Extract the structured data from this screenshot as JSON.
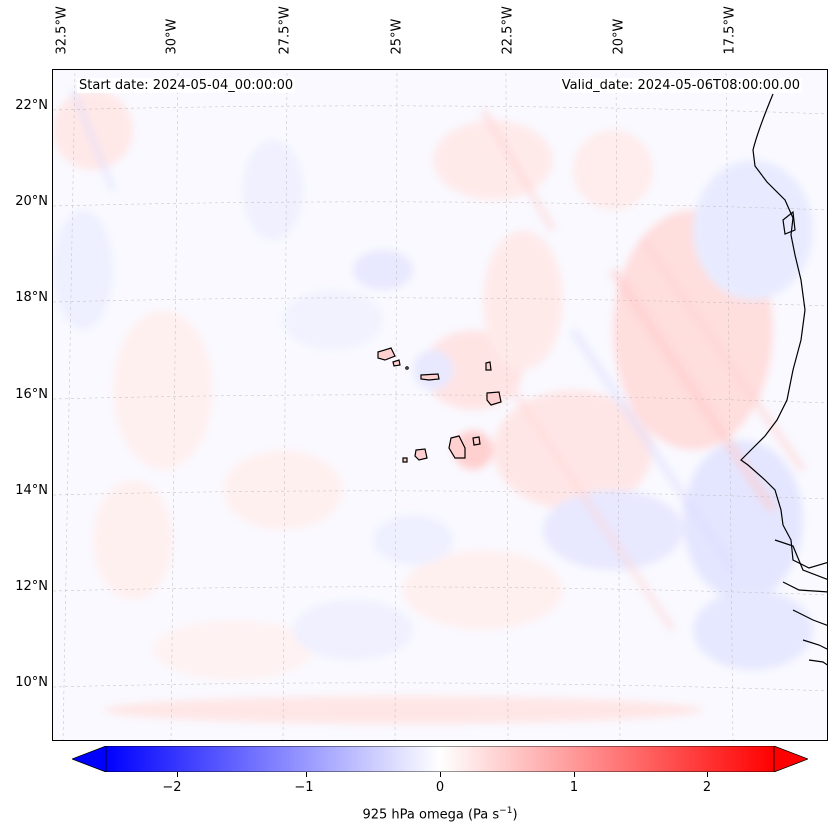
{
  "map": {
    "header": {
      "start_date": "Start date: 2024-05-04_00:00:00",
      "valid_date": "Valid_date: 2024-05-06T08:00:00.00"
    },
    "lon_labels": [
      "32.5°W",
      "30°W",
      "27.5°W",
      "25°W",
      "22.5°W",
      "20°W",
      "17.5°W"
    ],
    "lat_labels": [
      "22°N",
      "20°N",
      "18°N",
      "16°N",
      "14°N",
      "12°N",
      "10°N"
    ],
    "projection": "lambert-conformal",
    "gridlines": true,
    "colormap": "bwr",
    "colors": {
      "negative": "#0000ff",
      "zero": "#ffffff",
      "positive": "#ff0000",
      "coast": "#000000"
    }
  },
  "colorbar": {
    "label": "925 hPa omega (Pa s",
    "label_sup": "−1",
    "label_end": ")",
    "range": [
      -2.6,
      2.6
    ],
    "ticks": [
      "−2",
      "−1",
      "0",
      "1",
      "2"
    ],
    "tick_values": [
      -2,
      -1,
      0,
      1,
      2
    ],
    "extend": "both"
  }
}
